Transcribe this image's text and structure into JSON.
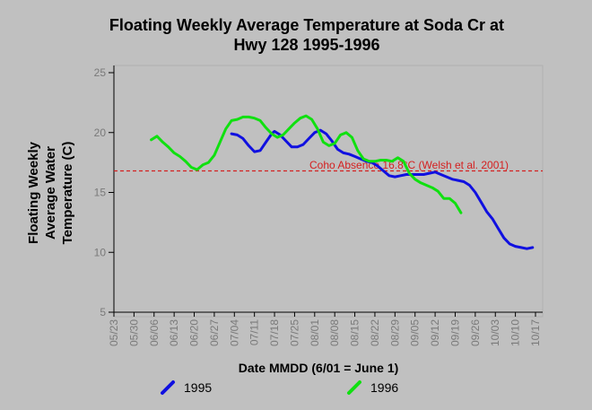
{
  "chart_data": {
    "type": "line",
    "title_line1": "Floating Weekly Average Temperature at Soda Cr at",
    "title_line2": "Hwy 128 1995-1996",
    "ylabel_lines": [
      "Floating Weekly",
      "Average Water",
      "Temperature (C)"
    ],
    "xlabel": "Date MMDD (6/01 = June 1)",
    "ylim": [
      5,
      25
    ],
    "y_ticks": [
      "5",
      "10",
      "15",
      "20",
      "25"
    ],
    "x_ticks": [
      "05/23",
      "05/30",
      "06/06",
      "06/13",
      "06/20",
      "06/27",
      "07/04",
      "07/11",
      "07/18",
      "07/25",
      "08/01",
      "08/08",
      "08/15",
      "08/22",
      "08/29",
      "09/05",
      "09/12",
      "09/19",
      "09/26",
      "10/03",
      "10/10",
      "10/17"
    ],
    "threshold": {
      "value": 16.8,
      "label": "Coho Absence 16.8°C (Welsh et al. 2001)",
      "color": "#d42020"
    },
    "series": [
      {
        "name": "1995",
        "color": "#1010e0",
        "points": [
          [
            "07/03",
            19.9
          ],
          [
            "07/05",
            19.8
          ],
          [
            "07/07",
            19.5
          ],
          [
            "07/09",
            18.9
          ],
          [
            "07/11",
            18.4
          ],
          [
            "07/13",
            18.5
          ],
          [
            "07/15",
            19.2
          ],
          [
            "07/17",
            19.9
          ],
          [
            "07/18",
            20.1
          ],
          [
            "07/20",
            19.8
          ],
          [
            "07/22",
            19.3
          ],
          [
            "07/24",
            18.8
          ],
          [
            "07/26",
            18.8
          ],
          [
            "07/28",
            19.0
          ],
          [
            "07/30",
            19.5
          ],
          [
            "08/01",
            20.0
          ],
          [
            "08/03",
            20.2
          ],
          [
            "08/05",
            19.9
          ],
          [
            "08/07",
            19.3
          ],
          [
            "08/09",
            18.6
          ],
          [
            "08/11",
            18.3
          ],
          [
            "08/13",
            18.2
          ],
          [
            "08/15",
            18.0
          ],
          [
            "08/17",
            17.8
          ],
          [
            "08/19",
            17.6
          ],
          [
            "08/21",
            17.5
          ],
          [
            "08/23",
            17.2
          ],
          [
            "08/25",
            16.8
          ],
          [
            "08/27",
            16.4
          ],
          [
            "08/29",
            16.3
          ],
          [
            "08/31",
            16.4
          ],
          [
            "09/02",
            16.5
          ],
          [
            "09/04",
            16.5
          ],
          [
            "09/06",
            16.5
          ],
          [
            "09/08",
            16.5
          ],
          [
            "09/10",
            16.6
          ],
          [
            "09/12",
            16.7
          ],
          [
            "09/14",
            16.5
          ],
          [
            "09/16",
            16.3
          ],
          [
            "09/18",
            16.1
          ],
          [
            "09/20",
            16.0
          ],
          [
            "09/22",
            15.9
          ],
          [
            "09/24",
            15.6
          ],
          [
            "09/26",
            15.0
          ],
          [
            "09/28",
            14.2
          ],
          [
            "09/30",
            13.4
          ],
          [
            "10/02",
            12.8
          ],
          [
            "10/04",
            12.0
          ],
          [
            "10/06",
            11.2
          ],
          [
            "10/08",
            10.7
          ],
          [
            "10/10",
            10.5
          ],
          [
            "10/12",
            10.4
          ],
          [
            "10/14",
            10.3
          ],
          [
            "10/16",
            10.4
          ]
        ]
      },
      {
        "name": "1996",
        "color": "#10e010",
        "points": [
          [
            "06/05",
            19.4
          ],
          [
            "06/07",
            19.7
          ],
          [
            "06/09",
            19.2
          ],
          [
            "06/11",
            18.8
          ],
          [
            "06/13",
            18.3
          ],
          [
            "06/15",
            18.0
          ],
          [
            "06/17",
            17.6
          ],
          [
            "06/19",
            17.1
          ],
          [
            "06/21",
            16.9
          ],
          [
            "06/23",
            17.3
          ],
          [
            "06/25",
            17.5
          ],
          [
            "06/27",
            18.1
          ],
          [
            "06/29",
            19.2
          ],
          [
            "07/01",
            20.3
          ],
          [
            "07/03",
            21.0
          ],
          [
            "07/05",
            21.1
          ],
          [
            "07/07",
            21.3
          ],
          [
            "07/09",
            21.3
          ],
          [
            "07/11",
            21.2
          ],
          [
            "07/13",
            21.0
          ],
          [
            "07/15",
            20.4
          ],
          [
            "07/17",
            19.9
          ],
          [
            "07/19",
            19.6
          ],
          [
            "07/21",
            19.8
          ],
          [
            "07/23",
            20.3
          ],
          [
            "07/25",
            20.8
          ],
          [
            "07/27",
            21.2
          ],
          [
            "07/29",
            21.4
          ],
          [
            "07/31",
            21.1
          ],
          [
            "08/02",
            20.3
          ],
          [
            "08/04",
            19.2
          ],
          [
            "08/06",
            18.9
          ],
          [
            "08/08",
            19.1
          ],
          [
            "08/10",
            19.8
          ],
          [
            "08/12",
            20.0
          ],
          [
            "08/14",
            19.6
          ],
          [
            "08/16",
            18.5
          ],
          [
            "08/18",
            17.8
          ],
          [
            "08/20",
            17.6
          ],
          [
            "08/22",
            17.6
          ],
          [
            "08/24",
            17.7
          ],
          [
            "08/26",
            17.7
          ],
          [
            "08/28",
            17.6
          ],
          [
            "08/30",
            17.9
          ],
          [
            "09/01",
            17.6
          ],
          [
            "09/03",
            16.6
          ],
          [
            "09/05",
            16.1
          ],
          [
            "09/07",
            15.8
          ],
          [
            "09/09",
            15.6
          ],
          [
            "09/11",
            15.4
          ],
          [
            "09/13",
            15.1
          ],
          [
            "09/15",
            14.5
          ],
          [
            "09/17",
            14.5
          ],
          [
            "09/19",
            14.1
          ],
          [
            "09/21",
            13.3
          ]
        ]
      }
    ]
  }
}
